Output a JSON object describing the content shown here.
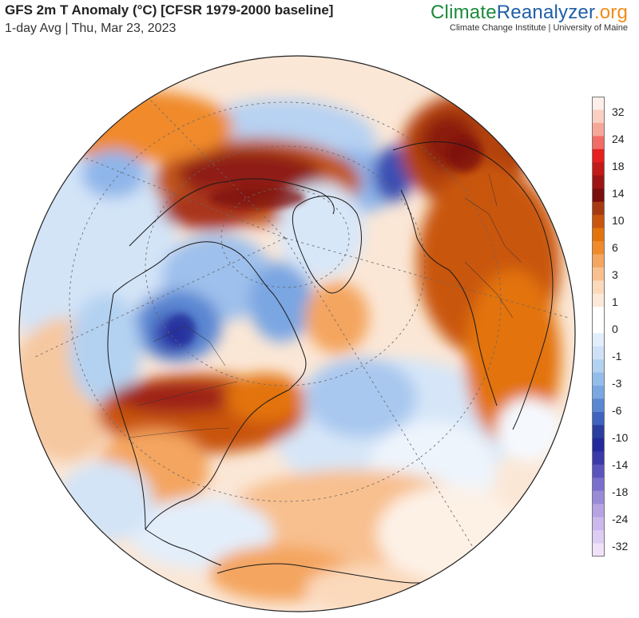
{
  "header": {
    "title": "GFS 2m T Anomaly (°C) [CFSR 1979-2000 baseline]",
    "subtitle": "1-day Avg | Thu, Mar 23, 2023"
  },
  "brand": {
    "part1": "Climate",
    "part2": "Reanalyzer",
    "part3": ".org",
    "tagline": "Climate Change Institute | University of Maine",
    "colors": {
      "part1": "#1b8a3c",
      "part2": "#1f5fa8",
      "part3": "#f28c1a"
    }
  },
  "map": {
    "projection": "orthographic",
    "center": "North Pole / North Atlantic",
    "grid": true
  },
  "legend": {
    "ticks": [
      "32",
      "24",
      "18",
      "14",
      "10",
      "6",
      "3",
      "1",
      "0",
      "-1",
      "-3",
      "-6",
      "-10",
      "-14",
      "-18",
      "-24",
      "-32"
    ],
    "colors": [
      "#fdeeea",
      "#fbd0c2",
      "#f7a79a",
      "#f26c66",
      "#e6201e",
      "#c21a1a",
      "#9e1414",
      "#7a0d0d",
      "#a83a12",
      "#c9550f",
      "#e3730b",
      "#f08a2c",
      "#f4a55f",
      "#f8c08f",
      "#fbd9bb",
      "#fde9d9",
      "#ffffff",
      "#ffffff",
      "#e3eefb",
      "#cfe1f6",
      "#b3d1f1",
      "#94bceb",
      "#7aa6e2",
      "#5a86d2",
      "#3f63bf",
      "#2a3ea0",
      "#23299a",
      "#3b3aaa",
      "#5a55bd",
      "#7a6fcc",
      "#9b8ad8",
      "#b5a3e3",
      "#cbb8ec",
      "#ddcdf2",
      "#f0e3f7"
    ]
  }
}
